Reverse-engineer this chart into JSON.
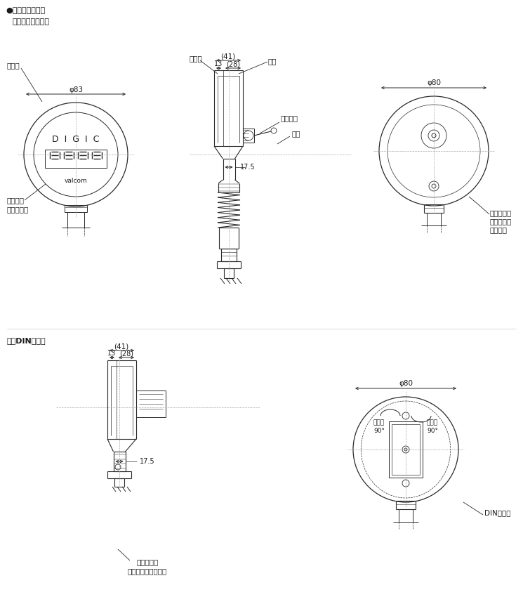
{
  "bg_color": "#ffffff",
  "lc": "#2a2a2a",
  "tc": "#1a1a1a",
  "title": "●直接连接传感器",
  "sub1": "背面电缆直接连接",
  "sub2": "背面DIN连接器",
  "label_displayer": "显示器",
  "label_face": "正面面板",
  "label_face2": "（亚克力）",
  "label_ring": "环形盖",
  "label_body": "机体",
  "label_cable_conn": "电缆接头",
  "label_cable": "电缆",
  "label_air": "空气连通孔",
  "label_air2": "（带有防水",
  "label_air3": "过滤器）",
  "label_air_full": "空气连通孔",
  "label_air_full2": "（带有防水过滤器）",
  "label_din": "DIN连接器",
  "label_175": "17.5",
  "label_41": "(41)",
  "label_13": "13",
  "label_28": "(28)",
  "label_phi83": "φ83",
  "label_phi80": "φ80",
  "label_90a": "每次转",
  "label_90b": "90°",
  "label_valcom": "valcom"
}
